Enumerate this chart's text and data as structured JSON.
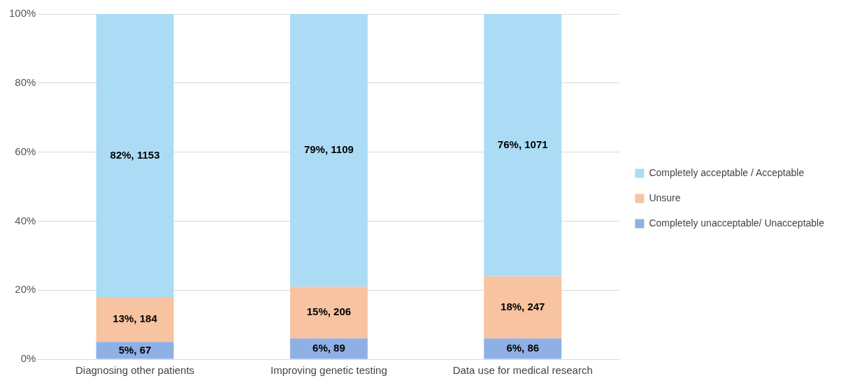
{
  "chart_data": {
    "type": "bar",
    "stacked": true,
    "categories": [
      "Diagnosing other patients",
      "Improving genetic testing",
      "Data use for medical research"
    ],
    "series": [
      {
        "name": "Completely unacceptable/ Unacceptable",
        "color": "#8fb0e4",
        "values": [
          5,
          6,
          6
        ],
        "value_labels": [
          "5%, 67",
          "6%, 89",
          "6%, 86"
        ]
      },
      {
        "name": "Unsure",
        "color": "#f8c3a0",
        "values": [
          13,
          15,
          18
        ],
        "value_labels": [
          "13%, 184",
          "15%, 206",
          "18%, 247"
        ]
      },
      {
        "name": "Completely acceptable / Acceptable",
        "color": "#acdcf5",
        "values": [
          82,
          79,
          76
        ],
        "value_labels": [
          "82%, 1153",
          "79%, 1109",
          "76%, 1071"
        ]
      }
    ],
    "ylim": [
      0,
      100
    ],
    "yticks": [
      {
        "value": 0,
        "label": "0%"
      },
      {
        "value": 20,
        "label": "20%"
      },
      {
        "value": 40,
        "label": "40%"
      },
      {
        "value": 60,
        "label": "60%"
      },
      {
        "value": 80,
        "label": "80%"
      },
      {
        "value": 100,
        "label": "100%"
      }
    ],
    "grid": "y",
    "legend": "right"
  }
}
